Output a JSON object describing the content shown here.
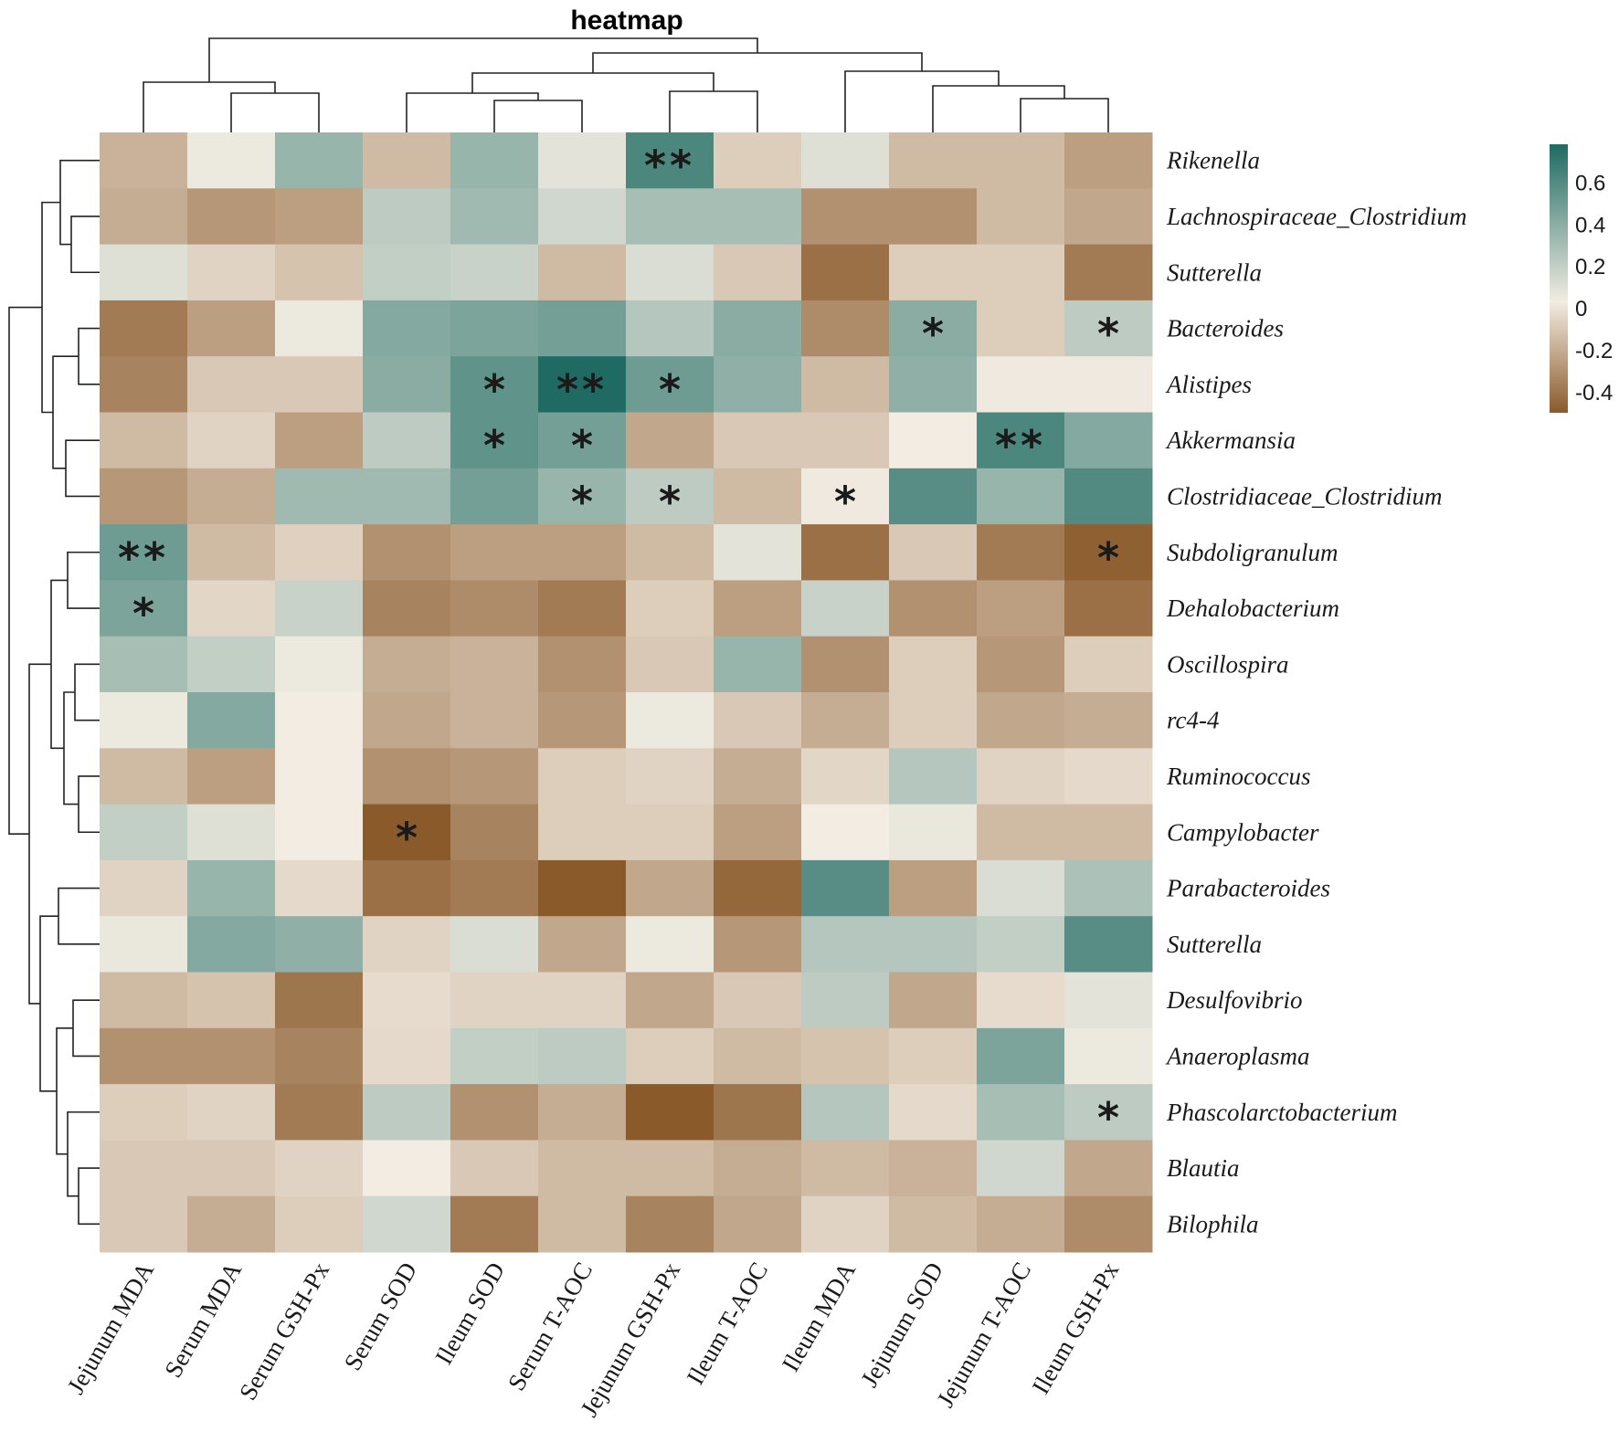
{
  "chart_data": {
    "type": "heatmap",
    "title": "heatmap",
    "columns": [
      "Jejunum MDA",
      "Serum MDA",
      "Serum GSH-Px",
      "Serum SOD",
      "Ileum SOD",
      "Serum T-AOC",
      "Jejunum GSH-Px",
      "Ileum T-AOC",
      "Ileum MDA",
      "Jejunum SOD",
      "Jejunum T-AOC",
      "Ileum GSH-Px"
    ],
    "rows": [
      "Rikenella",
      "Lachnospiraceae_Clostridium",
      "Sutterella",
      "Bacteroides",
      "Alistipes",
      "Akkermansia",
      "Clostridiaceae_Clostridium",
      "Subdoligranulum",
      "Dehalobacterium",
      "Oscillospira",
      "rc4-4",
      "Ruminococcus",
      "Campylobacter",
      "Parabacteroides",
      "Sutterella",
      "Desulfovibrio",
      "Anaeroplasma",
      "Phascolarctobacterium",
      "Blautia",
      "Bilophila"
    ],
    "values": [
      [
        -0.18,
        0.05,
        0.35,
        -0.15,
        0.35,
        0.08,
        0.62,
        -0.08,
        0.1,
        -0.15,
        -0.15,
        -0.25
      ],
      [
        -0.2,
        -0.28,
        -0.25,
        0.22,
        0.32,
        0.15,
        0.3,
        0.3,
        -0.3,
        -0.3,
        -0.15,
        -0.22
      ],
      [
        0.1,
        -0.06,
        -0.12,
        0.2,
        0.18,
        -0.15,
        0.12,
        -0.1,
        -0.42,
        -0.08,
        -0.08,
        -0.38
      ],
      [
        -0.38,
        -0.25,
        0.05,
        0.42,
        0.45,
        0.48,
        0.25,
        0.4,
        -0.32,
        0.4,
        -0.08,
        0.22
      ],
      [
        -0.35,
        -0.1,
        -0.1,
        0.4,
        0.55,
        0.78,
        0.5,
        0.38,
        -0.15,
        0.38,
        0.02,
        0.02
      ],
      [
        -0.15,
        -0.06,
        -0.25,
        0.22,
        0.55,
        0.48,
        -0.22,
        -0.1,
        -0.1,
        0.03,
        0.62,
        0.42
      ],
      [
        -0.28,
        -0.2,
        0.32,
        0.32,
        0.48,
        0.35,
        0.22,
        -0.15,
        0.02,
        0.58,
        0.35,
        0.6
      ],
      [
        0.5,
        -0.15,
        -0.07,
        -0.3,
        -0.25,
        -0.25,
        -0.15,
        0.08,
        -0.42,
        -0.1,
        -0.38,
        -0.48
      ],
      [
        0.45,
        -0.05,
        0.18,
        -0.35,
        -0.32,
        -0.38,
        -0.08,
        -0.25,
        0.18,
        -0.3,
        -0.25,
        -0.42
      ],
      [
        0.3,
        0.2,
        0.05,
        -0.2,
        -0.18,
        -0.3,
        -0.1,
        0.35,
        -0.3,
        -0.08,
        -0.28,
        -0.08
      ],
      [
        0.05,
        0.42,
        0.03,
        -0.22,
        -0.18,
        -0.28,
        0.05,
        -0.1,
        -0.2,
        -0.08,
        -0.22,
        -0.2
      ],
      [
        -0.15,
        -0.25,
        0.03,
        -0.3,
        -0.28,
        -0.08,
        -0.06,
        -0.2,
        -0.05,
        0.25,
        -0.06,
        -0.04
      ],
      [
        0.2,
        0.1,
        0.03,
        -0.52,
        -0.35,
        -0.08,
        -0.08,
        -0.25,
        0.03,
        0.06,
        -0.15,
        -0.15
      ],
      [
        -0.06,
        0.35,
        -0.04,
        -0.42,
        -0.38,
        -0.52,
        -0.22,
        -0.45,
        0.58,
        -0.25,
        0.12,
        0.28
      ],
      [
        0.06,
        0.42,
        0.38,
        -0.06,
        0.12,
        -0.22,
        0.05,
        -0.28,
        0.25,
        0.25,
        0.2,
        0.58
      ],
      [
        -0.15,
        -0.12,
        -0.4,
        -0.03,
        -0.06,
        -0.06,
        -0.22,
        -0.1,
        0.22,
        -0.22,
        -0.03,
        0.08
      ],
      [
        -0.3,
        -0.3,
        -0.35,
        -0.04,
        0.2,
        0.22,
        -0.08,
        -0.15,
        -0.12,
        -0.08,
        0.45,
        0.05
      ],
      [
        -0.08,
        -0.06,
        -0.38,
        0.22,
        -0.3,
        -0.2,
        -0.5,
        -0.4,
        0.25,
        -0.04,
        0.3,
        0.22
      ],
      [
        -0.1,
        -0.1,
        -0.06,
        0.03,
        -0.1,
        -0.15,
        -0.15,
        -0.2,
        -0.15,
        -0.18,
        0.15,
        -0.22
      ],
      [
        -0.1,
        -0.2,
        -0.08,
        0.15,
        -0.38,
        -0.15,
        -0.35,
        -0.22,
        -0.06,
        -0.15,
        -0.2,
        -0.32
      ]
    ],
    "significance": [
      [
        "",
        "",
        "",
        "",
        "",
        "",
        "**",
        "",
        "",
        "",
        "",
        ""
      ],
      [
        "",
        "",
        "",
        "",
        "",
        "",
        "",
        "",
        "",
        "",
        "",
        ""
      ],
      [
        "",
        "",
        "",
        "",
        "",
        "",
        "",
        "",
        "",
        "",
        "",
        ""
      ],
      [
        "",
        "",
        "",
        "",
        "",
        "",
        "",
        "",
        "",
        "*",
        "",
        "*"
      ],
      [
        "",
        "",
        "",
        "",
        "*",
        "**",
        "*",
        "",
        "",
        "",
        "",
        ""
      ],
      [
        "",
        "",
        "",
        "",
        "*",
        "*",
        "",
        "",
        "",
        "",
        "**",
        ""
      ],
      [
        "",
        "",
        "",
        "",
        "",
        "*",
        "*",
        "",
        "*",
        "",
        "",
        ""
      ],
      [
        "**",
        "",
        "",
        "",
        "",
        "",
        "",
        "",
        "",
        "",
        "",
        "*"
      ],
      [
        "*",
        "",
        "",
        "",
        "",
        "",
        "",
        "",
        "",
        "",
        "",
        ""
      ],
      [
        "",
        "",
        "",
        "",
        "",
        "",
        "",
        "",
        "",
        "",
        "",
        ""
      ],
      [
        "",
        "",
        "",
        "",
        "",
        "",
        "",
        "",
        "",
        "",
        "",
        ""
      ],
      [
        "",
        "",
        "",
        "",
        "",
        "",
        "",
        "",
        "",
        "",
        "",
        ""
      ],
      [
        "",
        "",
        "",
        "*",
        "",
        "",
        "",
        "",
        "",
        "",
        "",
        ""
      ],
      [
        "",
        "",
        "",
        "",
        "",
        "",
        "",
        "",
        "",
        "",
        "",
        ""
      ],
      [
        "",
        "",
        "",
        "",
        "",
        "",
        "",
        "",
        "",
        "",
        "",
        ""
      ],
      [
        "",
        "",
        "",
        "",
        "",
        "",
        "",
        "",
        "",
        "",
        "",
        ""
      ],
      [
        "",
        "",
        "",
        "",
        "",
        "",
        "",
        "",
        "",
        "",
        "",
        ""
      ],
      [
        "",
        "",
        "",
        "",
        "",
        "",
        "",
        "",
        "",
        "",
        "",
        "*"
      ],
      [
        "",
        "",
        "",
        "",
        "",
        "",
        "",
        "",
        "",
        "",
        "",
        ""
      ],
      [
        "",
        "",
        "",
        "",
        "",
        "",
        "",
        "",
        "",
        "",
        "",
        ""
      ]
    ],
    "color_scale": {
      "min": -0.5,
      "mid": 0.03,
      "max": 0.78,
      "low_color": "#8b5a2b",
      "mid_color": "#f2ece2",
      "high_color": "#1f6b63",
      "ticks": [
        "0.6",
        "0.4",
        "0.2",
        "0",
        "-0.2",
        "-0.4"
      ],
      "tick_values": [
        0.6,
        0.4,
        0.2,
        0,
        -0.2,
        -0.4
      ]
    },
    "legend_placement": "top-right",
    "dendrograms": [
      "column",
      "row"
    ]
  }
}
